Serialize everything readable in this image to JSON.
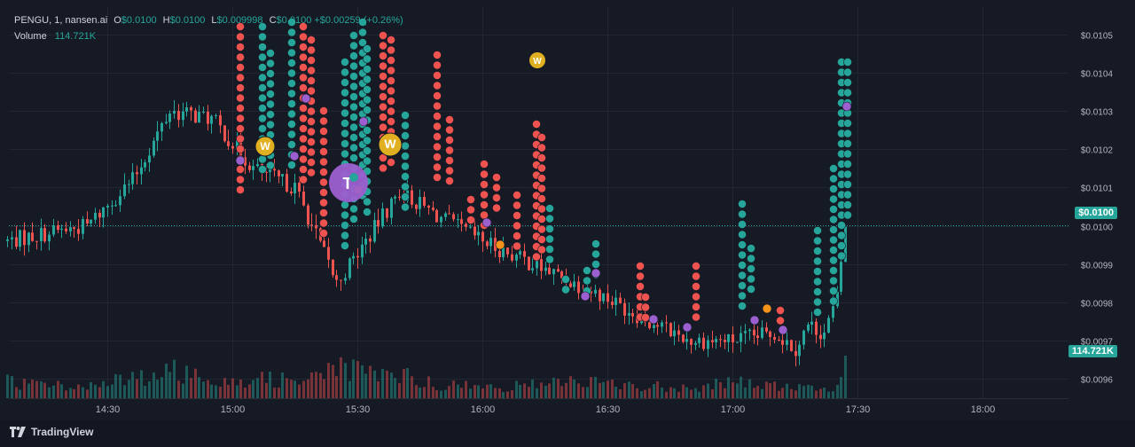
{
  "header": {
    "symbol": "PENGU, 1, nansen.ai",
    "o_label": "O",
    "o_value": "$0.0100",
    "h_label": "H",
    "h_value": "$0.0100",
    "l_label": "L",
    "l_value": "$0.009998",
    "c_label": "C",
    "c_value": "$0.0100",
    "change": "+$0.00259 (+0.26%)",
    "volume_label": "Volume",
    "volume_value": "114.721K"
  },
  "branding": {
    "logo_text": "TradingView"
  },
  "markers": {
    "w_label": "W",
    "t_label": "T"
  },
  "colors": {
    "background": "#161a25",
    "up": "#26a69a",
    "down": "#ef5350",
    "purple": "#9c5fcf",
    "orange": "#f7931a",
    "gold": "#e0b020"
  },
  "chart_data": {
    "type": "candlestick",
    "title": "PENGU, 1, nansen.ai",
    "x_ticks": [
      "14:30",
      "15:00",
      "15:30",
      "16:00",
      "16:30",
      "17:00",
      "17:30",
      "18:00"
    ],
    "y_ticks": [
      "$0.0105",
      "$0.0104",
      "$0.0103",
      "$0.0102",
      "$0.0101",
      "$0.0100",
      "$0.0099",
      "$0.0098",
      "$0.0097",
      "$0.0096"
    ],
    "ylim": [
      0.00955,
      0.01055
    ],
    "last_price_label": "$0.0100",
    "last_volume_label": "114.721K",
    "x": [
      "14:06",
      "14:15",
      "14:25",
      "14:36",
      "14:45",
      "14:55",
      "15:05",
      "15:15",
      "15:25",
      "15:32",
      "15:40",
      "15:50",
      "16:00",
      "16:10",
      "16:20",
      "16:30",
      "16:40",
      "16:50",
      "17:00",
      "17:10",
      "17:15",
      "17:18",
      "17:22",
      "17:25",
      "17:27"
    ],
    "close": [
      0.00996,
      0.00998,
      0.01,
      0.01012,
      0.0103,
      0.01028,
      0.01015,
      0.0101,
      0.00985,
      0.00996,
      0.01009,
      0.01002,
      0.00996,
      0.00991,
      0.00986,
      0.00981,
      0.00975,
      0.0097,
      0.0097,
      0.00972,
      0.00968,
      0.00974,
      0.00972,
      0.00981,
      0.01
    ],
    "volume": [
      12,
      10,
      9,
      14,
      20,
      16,
      13,
      15,
      22,
      18,
      17,
      10,
      8,
      9,
      14,
      10,
      9,
      8,
      12,
      9,
      8,
      7,
      6,
      9,
      25
    ]
  }
}
